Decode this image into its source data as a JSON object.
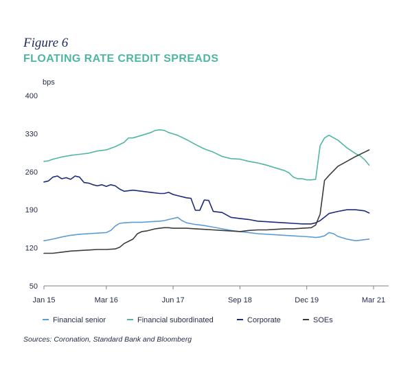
{
  "figure": {
    "number": "Figure 6",
    "title": "FLOATING RATE CREDIT SPREADS",
    "source": "Sources: Coronation, Standard Bank and Bloomberg"
  },
  "chart_data": {
    "type": "line",
    "ylabel": "bps",
    "xlabel": "",
    "ylim": [
      50,
      400
    ],
    "yticks": [
      50,
      120,
      190,
      260,
      330,
      400
    ],
    "xlim": [
      0,
      74
    ],
    "xticks": [
      {
        "label": "Jan 15",
        "x": 0
      },
      {
        "label": "Mar 16",
        "x": 14
      },
      {
        "label": "Jun 17",
        "x": 29
      },
      {
        "label": "Sep 18",
        "x": 44
      },
      {
        "label": "Dec 19",
        "x": 59
      },
      {
        "label": "Mar 21",
        "x": 74
      }
    ],
    "grid": false,
    "legend_position": "bottom",
    "series": [
      {
        "name": "Financial senior",
        "color": "#5b9bd5",
        "x": [
          0,
          2,
          4,
          6,
          8,
          10,
          12,
          14,
          15,
          16,
          17,
          18,
          20,
          22,
          24,
          26,
          27,
          28,
          29,
          30,
          31,
          32,
          34,
          36,
          38,
          40,
          42,
          44,
          46,
          48,
          50,
          52,
          54,
          56,
          58,
          60,
          61,
          62,
          63,
          64,
          65,
          66,
          68,
          70,
          72,
          73
        ],
        "values": [
          133,
          136,
          140,
          143,
          145,
          146,
          147,
          148,
          152,
          160,
          165,
          166,
          167,
          167,
          168,
          169,
          170,
          172,
          174,
          176,
          170,
          166,
          163,
          161,
          158,
          155,
          152,
          150,
          148,
          146,
          145,
          144,
          143,
          142,
          141,
          140,
          139,
          140,
          142,
          148,
          146,
          141,
          136,
          133,
          135,
          136
        ]
      },
      {
        "name": "Financial subordinated",
        "color": "#4fb6a4",
        "x": [
          0,
          1,
          2,
          4,
          6,
          8,
          10,
          12,
          14,
          16,
          18,
          19,
          20,
          22,
          24,
          25,
          26,
          27,
          28,
          30,
          32,
          34,
          36,
          38,
          40,
          42,
          44,
          46,
          48,
          50,
          52,
          54,
          55,
          56,
          57,
          58,
          59,
          60,
          61,
          62,
          63,
          64,
          66,
          68,
          70,
          71,
          72,
          73
        ],
        "values": [
          279,
          280,
          283,
          287,
          290,
          292,
          294,
          298,
          300,
          306,
          314,
          322,
          322,
          327,
          332,
          336,
          337,
          336,
          332,
          327,
          319,
          310,
          302,
          296,
          288,
          284,
          283,
          279,
          276,
          272,
          267,
          262,
          258,
          250,
          247,
          247,
          245,
          245,
          246,
          308,
          322,
          327,
          318,
          304,
          293,
          289,
          282,
          272
        ]
      },
      {
        "name": "Corporate",
        "color": "#1b2a7a",
        "x": [
          0,
          1,
          2,
          3,
          4,
          5,
          6,
          7,
          8,
          9,
          10,
          11,
          12,
          13,
          14,
          15,
          16,
          17,
          18,
          20,
          22,
          24,
          26,
          27,
          28,
          29,
          30,
          32,
          33,
          34,
          35,
          36,
          37,
          38,
          39,
          40,
          42,
          44,
          46,
          48,
          50,
          52,
          54,
          56,
          58,
          60,
          61,
          62,
          64,
          66,
          68,
          70,
          72,
          73
        ],
        "values": [
          241,
          243,
          250,
          252,
          247,
          249,
          246,
          252,
          250,
          240,
          239,
          236,
          234,
          236,
          233,
          236,
          234,
          228,
          224,
          226,
          224,
          222,
          220,
          220,
          222,
          218,
          216,
          212,
          211,
          189,
          189,
          208,
          207,
          187,
          186,
          185,
          176,
          174,
          172,
          169,
          168,
          167,
          166,
          165,
          164,
          164,
          166,
          170,
          183,
          187,
          190,
          190,
          188,
          184
        ]
      },
      {
        "name": "SOEs",
        "color": "#3a3a3a",
        "x": [
          0,
          2,
          4,
          6,
          8,
          10,
          12,
          14,
          16,
          17,
          18,
          19,
          20,
          21,
          22,
          23,
          24,
          25,
          26,
          27,
          28,
          29,
          30,
          32,
          34,
          36,
          38,
          40,
          42,
          44,
          46,
          48,
          50,
          52,
          54,
          56,
          58,
          60,
          61,
          62,
          63,
          64,
          66,
          68,
          70,
          72,
          73
        ],
        "values": [
          110,
          110,
          112,
          114,
          115,
          116,
          117,
          117,
          118,
          121,
          128,
          132,
          136,
          146,
          150,
          151,
          153,
          155,
          156,
          157,
          157,
          156,
          156,
          156,
          155,
          154,
          153,
          152,
          151,
          150,
          152,
          153,
          153,
          154,
          155,
          155,
          156,
          157,
          162,
          182,
          244,
          253,
          270,
          279,
          288,
          296,
          300
        ]
      }
    ]
  }
}
